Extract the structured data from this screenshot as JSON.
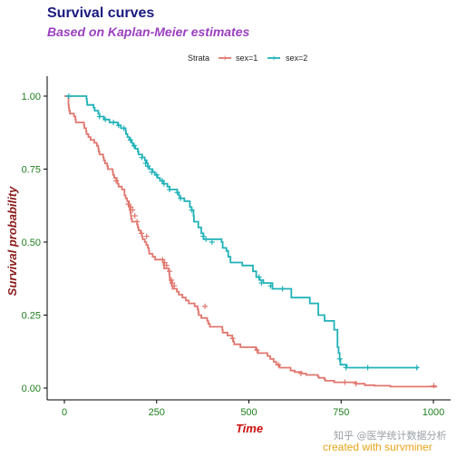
{
  "chart_data": {
    "type": "line",
    "title": "Survival curves",
    "subtitle": "Based on Kaplan-Meier estimates",
    "xlabel": "Time",
    "ylabel": "Survival probability",
    "xlim": [
      0,
      1022
    ],
    "ylim": [
      0,
      1
    ],
    "x_ticks": [
      0,
      250,
      500,
      750,
      1000
    ],
    "y_ticks": [
      0.0,
      0.25,
      0.5,
      0.75,
      1.0
    ],
    "x_tick_labels": [
      "0",
      "250",
      "500",
      "750",
      "1000"
    ],
    "y_tick_labels": [
      "0.00",
      "0.25",
      "0.50",
      "0.75",
      "1.00"
    ],
    "grid": false,
    "legend": {
      "title": "Strata",
      "placement": "top"
    },
    "series": [
      {
        "name": "sex=1",
        "color": "#E0776F",
        "steps": [
          [
            0,
            1.0
          ],
          [
            11,
            0.97
          ],
          [
            12,
            0.96
          ],
          [
            13,
            0.95
          ],
          [
            15,
            0.94
          ],
          [
            26,
            0.93
          ],
          [
            30,
            0.92
          ],
          [
            31,
            0.91
          ],
          [
            53,
            0.9
          ],
          [
            54,
            0.89
          ],
          [
            59,
            0.88
          ],
          [
            60,
            0.87
          ],
          [
            65,
            0.86
          ],
          [
            71,
            0.85
          ],
          [
            81,
            0.84
          ],
          [
            88,
            0.83
          ],
          [
            92,
            0.82
          ],
          [
            93,
            0.81
          ],
          [
            95,
            0.8
          ],
          [
            105,
            0.79
          ],
          [
            107,
            0.78
          ],
          [
            110,
            0.77
          ],
          [
            116,
            0.76
          ],
          [
            118,
            0.75
          ],
          [
            131,
            0.74
          ],
          [
            132,
            0.73
          ],
          [
            135,
            0.72
          ],
          [
            142,
            0.71
          ],
          [
            144,
            0.7
          ],
          [
            147,
            0.69
          ],
          [
            156,
            0.68
          ],
          [
            163,
            0.66
          ],
          [
            166,
            0.65
          ],
          [
            170,
            0.64
          ],
          [
            175,
            0.63
          ],
          [
            176,
            0.62
          ],
          [
            177,
            0.61
          ],
          [
            179,
            0.6
          ],
          [
            180,
            0.59
          ],
          [
            181,
            0.58
          ],
          [
            183,
            0.57
          ],
          [
            197,
            0.56
          ],
          [
            199,
            0.55
          ],
          [
            201,
            0.54
          ],
          [
            207,
            0.53
          ],
          [
            210,
            0.52
          ],
          [
            212,
            0.51
          ],
          [
            218,
            0.5
          ],
          [
            222,
            0.49
          ],
          [
            226,
            0.48
          ],
          [
            229,
            0.47
          ],
          [
            230,
            0.46
          ],
          [
            239,
            0.45
          ],
          [
            246,
            0.44
          ],
          [
            267,
            0.43
          ],
          [
            269,
            0.42
          ],
          [
            270,
            0.41
          ],
          [
            283,
            0.4
          ],
          [
            284,
            0.39
          ],
          [
            285,
            0.38
          ],
          [
            286,
            0.37
          ],
          [
            288,
            0.36
          ],
          [
            291,
            0.35
          ],
          [
            293,
            0.34
          ],
          [
            305,
            0.33
          ],
          [
            310,
            0.32
          ],
          [
            320,
            0.31
          ],
          [
            329,
            0.3
          ],
          [
            337,
            0.29
          ],
          [
            353,
            0.28
          ],
          [
            361,
            0.27
          ],
          [
            363,
            0.26
          ],
          [
            364,
            0.25
          ],
          [
            371,
            0.24
          ],
          [
            387,
            0.23
          ],
          [
            390,
            0.22
          ],
          [
            394,
            0.21
          ],
          [
            428,
            0.2
          ],
          [
            429,
            0.19
          ],
          [
            442,
            0.18
          ],
          [
            455,
            0.17
          ],
          [
            457,
            0.16
          ],
          [
            460,
            0.15
          ],
          [
            477,
            0.14
          ],
          [
            519,
            0.13
          ],
          [
            524,
            0.12
          ],
          [
            550,
            0.11
          ],
          [
            558,
            0.1
          ],
          [
            567,
            0.09
          ],
          [
            574,
            0.08
          ],
          [
            583,
            0.07
          ],
          [
            613,
            0.06
          ],
          [
            624,
            0.055
          ],
          [
            643,
            0.05
          ],
          [
            655,
            0.045
          ],
          [
            687,
            0.04
          ],
          [
            689,
            0.035
          ],
          [
            705,
            0.03
          ],
          [
            707,
            0.025
          ],
          [
            731,
            0.02
          ],
          [
            791,
            0.015
          ],
          [
            814,
            0.01
          ],
          [
            840,
            0.008
          ],
          [
            883,
            0.005
          ],
          [
            1010,
            0.005
          ]
        ],
        "censored": [
          [
            140,
            0.71
          ],
          [
            173,
            0.63
          ],
          [
            180,
            0.62
          ],
          [
            185,
            0.61
          ],
          [
            191,
            0.59
          ],
          [
            197,
            0.57
          ],
          [
            209,
            0.53
          ],
          [
            223,
            0.52
          ],
          [
            266,
            0.44
          ],
          [
            272,
            0.43
          ],
          [
            277,
            0.42
          ],
          [
            285,
            0.4
          ],
          [
            290,
            0.37
          ],
          [
            293,
            0.36
          ],
          [
            298,
            0.35
          ],
          [
            381,
            0.28
          ],
          [
            456,
            0.17
          ],
          [
            522,
            0.13
          ],
          [
            580,
            0.08
          ],
          [
            641,
            0.05
          ],
          [
            760,
            0.02
          ],
          [
            790,
            0.015
          ],
          [
            1001,
            0.008
          ]
        ]
      },
      {
        "name": "sex=2",
        "color": "#20B2B8",
        "steps": [
          [
            5,
            1.0
          ],
          [
            60,
            0.99
          ],
          [
            61,
            0.98
          ],
          [
            62,
            0.97
          ],
          [
            79,
            0.96
          ],
          [
            82,
            0.95
          ],
          [
            92,
            0.94
          ],
          [
            95,
            0.93
          ],
          [
            107,
            0.92
          ],
          [
            122,
            0.91
          ],
          [
            145,
            0.9
          ],
          [
            153,
            0.89
          ],
          [
            166,
            0.88
          ],
          [
            167,
            0.87
          ],
          [
            171,
            0.86
          ],
          [
            176,
            0.85
          ],
          [
            182,
            0.84
          ],
          [
            186,
            0.83
          ],
          [
            192,
            0.82
          ],
          [
            199,
            0.81
          ],
          [
            201,
            0.8
          ],
          [
            211,
            0.79
          ],
          [
            218,
            0.78
          ],
          [
            223,
            0.77
          ],
          [
            226,
            0.76
          ],
          [
            230,
            0.75
          ],
          [
            239,
            0.74
          ],
          [
            245,
            0.73
          ],
          [
            252,
            0.72
          ],
          [
            259,
            0.71
          ],
          [
            269,
            0.7
          ],
          [
            279,
            0.69
          ],
          [
            285,
            0.68
          ],
          [
            306,
            0.67
          ],
          [
            310,
            0.66
          ],
          [
            313,
            0.65
          ],
          [
            325,
            0.64
          ],
          [
            340,
            0.62
          ],
          [
            345,
            0.61
          ],
          [
            350,
            0.59
          ],
          [
            351,
            0.57
          ],
          [
            363,
            0.55
          ],
          [
            371,
            0.53
          ],
          [
            377,
            0.51
          ],
          [
            426,
            0.5
          ],
          [
            429,
            0.48
          ],
          [
            439,
            0.47
          ],
          [
            444,
            0.45
          ],
          [
            450,
            0.43
          ],
          [
            482,
            0.42
          ],
          [
            511,
            0.4
          ],
          [
            520,
            0.38
          ],
          [
            529,
            0.37
          ],
          [
            539,
            0.36
          ],
          [
            564,
            0.34
          ],
          [
            615,
            0.31
          ],
          [
            665,
            0.29
          ],
          [
            688,
            0.25
          ],
          [
            705,
            0.23
          ],
          [
            731,
            0.2
          ],
          [
            740,
            0.14
          ],
          [
            743,
            0.12
          ],
          [
            746,
            0.1
          ],
          [
            748,
            0.08
          ],
          [
            765,
            0.07
          ],
          [
            960,
            0.07
          ]
        ],
        "censored": [
          [
            12,
            1.0
          ],
          [
            95,
            0.93
          ],
          [
            111,
            0.92
          ],
          [
            133,
            0.91
          ],
          [
            147,
            0.9
          ],
          [
            161,
            0.89
          ],
          [
            179,
            0.85
          ],
          [
            189,
            0.83
          ],
          [
            210,
            0.79
          ],
          [
            220,
            0.77
          ],
          [
            226,
            0.76
          ],
          [
            237,
            0.74
          ],
          [
            250,
            0.73
          ],
          [
            265,
            0.71
          ],
          [
            270,
            0.7
          ],
          [
            285,
            0.68
          ],
          [
            306,
            0.67
          ],
          [
            315,
            0.65
          ],
          [
            345,
            0.61
          ],
          [
            376,
            0.52
          ],
          [
            384,
            0.51
          ],
          [
            400,
            0.5
          ],
          [
            527,
            0.38
          ],
          [
            534,
            0.36
          ],
          [
            559,
            0.35
          ],
          [
            591,
            0.34
          ],
          [
            746,
            0.1
          ],
          [
            763,
            0.07
          ],
          [
            822,
            0.07
          ],
          [
            955,
            0.07
          ]
        ]
      }
    ]
  },
  "colors": {
    "title": "#1A1A80",
    "subtitle": "#9C3FC0",
    "ytick": "#1E7F1E",
    "xtick": "#1E7F1E",
    "xlabel": "#CC1010",
    "ylabel": "#8B1A1A",
    "caption": "#E8A317",
    "watermark": "#9AA0A6"
  },
  "watermark": "知乎 @医学统计数据分析",
  "caption": "created with survminer"
}
